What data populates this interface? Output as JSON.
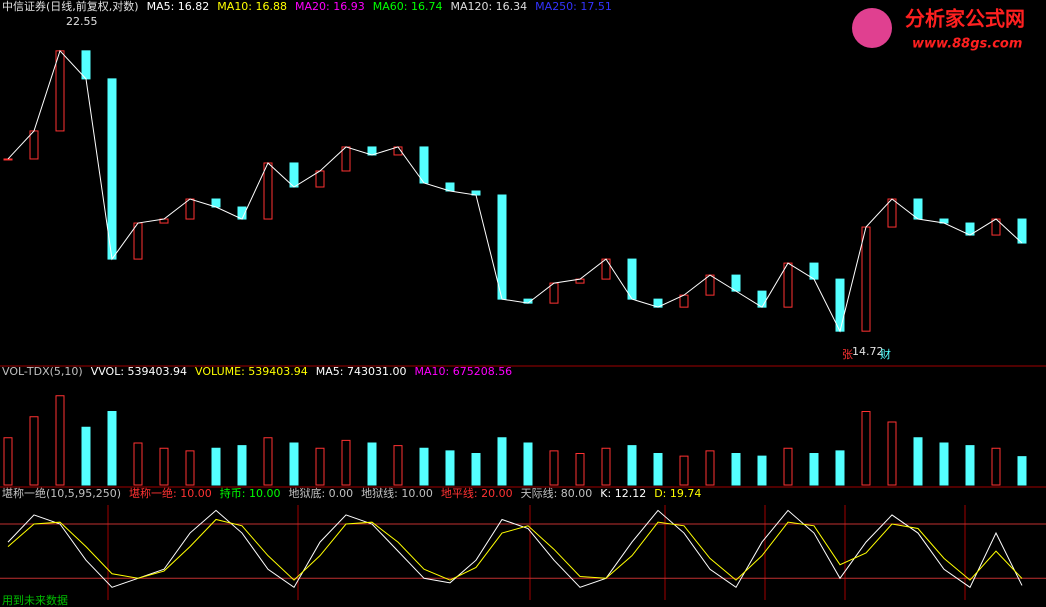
{
  "header": {
    "title": "中信证券(日线,前复权,对数)",
    "indicators": [
      {
        "label": "MA5: 16.82",
        "color": "#ffffff"
      },
      {
        "label": "MA10: 16.88",
        "color": "#ffff00"
      },
      {
        "label": "MA20: 16.93",
        "color": "#ff00ff"
      },
      {
        "label": "MA60: 16.74",
        "color": "#00ff00"
      },
      {
        "label": "MA120: 16.34",
        "color": "#dddddd"
      },
      {
        "label": "MA250: 17.51",
        "color": "#3333ff"
      }
    ]
  },
  "watermark": {
    "name": "分析家公式网",
    "url": "www.88gs.com"
  },
  "price_panel": {
    "ylim": [
      14.43,
      23.07
    ],
    "high_label": "22.55",
    "low_label": "14.72",
    "markers": [
      "张",
      "财"
    ],
    "close": [
      19.5,
      20.2,
      22.2,
      21.5,
      17.0,
      17.9,
      18.0,
      18.5,
      18.3,
      18.0,
      19.4,
      18.8,
      19.2,
      19.8,
      19.6,
      19.8,
      18.9,
      18.7,
      18.6,
      16.0,
      15.9,
      16.4,
      16.5,
      17.0,
      16.0,
      15.8,
      16.1,
      16.6,
      16.2,
      15.8,
      16.9,
      16.5,
      15.2,
      17.8,
      18.5,
      18.0,
      17.9,
      17.6,
      18.0,
      17.4
    ]
  },
  "volume_panel": {
    "labels": [
      {
        "label": "VOL-TDX(5,10)",
        "color": "#c0c0c0"
      },
      {
        "label": "VVOL: 539403.94",
        "color": "#ffffff"
      },
      {
        "label": "VOLUME: 539403.94",
        "color": "#ffff00"
      },
      {
        "label": "MA5: 743031.00",
        "color": "#ffffff"
      },
      {
        "label": "MA10: 675208.56",
        "color": "#ff00ff"
      }
    ],
    "ylim": [
      0,
      2000000
    ],
    "values": [
      900000,
      1300000,
      1700000,
      1100000,
      1400000,
      800000,
      700000,
      650000,
      700000,
      750000,
      900000,
      800000,
      700000,
      850000,
      800000,
      750000,
      700000,
      650000,
      600000,
      900000,
      800000,
      650000,
      600000,
      700000,
      750000,
      600000,
      550000,
      650000,
      600000,
      550000,
      700000,
      600000,
      650000,
      1400000,
      1200000,
      900000,
      800000,
      750000,
      700000,
      540000
    ]
  },
  "kd_panel": {
    "labels": [
      {
        "label": "堪称一绝(10,5,95,250)",
        "color": "#c0c0c0"
      },
      {
        "label": "堪称一绝: 10.00",
        "color": "#ff3232"
      },
      {
        "label": "持币: 10.00",
        "color": "#00ff00"
      },
      {
        "label": "地狱底: 0.00",
        "color": "#c0c0c0"
      },
      {
        "label": "地狱线: 10.00",
        "color": "#c0c0c0"
      },
      {
        "label": "地平线: 20.00",
        "color": "#ff3232"
      },
      {
        "label": "天际线: 80.00",
        "color": "#c0c0c0"
      },
      {
        "label": "K: 12.12",
        "color": "#ffffff"
      },
      {
        "label": "D: 19.74",
        "color": "#ffff00"
      }
    ],
    "ylim": [
      -4,
      101
    ],
    "levels": [
      80,
      20
    ],
    "k": [
      60,
      90,
      80,
      40,
      10,
      20,
      30,
      70,
      95,
      70,
      30,
      10,
      60,
      90,
      80,
      50,
      20,
      15,
      40,
      85,
      75,
      40,
      10,
      20,
      60,
      95,
      70,
      30,
      10,
      60,
      95,
      70,
      20,
      60,
      90,
      70,
      30,
      10,
      70,
      12.12
    ],
    "d": [
      55,
      80,
      82,
      55,
      25,
      20,
      28,
      55,
      85,
      78,
      45,
      18,
      45,
      80,
      82,
      60,
      30,
      18,
      32,
      70,
      78,
      52,
      22,
      20,
      45,
      82,
      78,
      42,
      18,
      45,
      82,
      78,
      35,
      48,
      80,
      75,
      42,
      18,
      50,
      19.74
    ]
  },
  "footer": {
    "note": "用到未来数据"
  }
}
